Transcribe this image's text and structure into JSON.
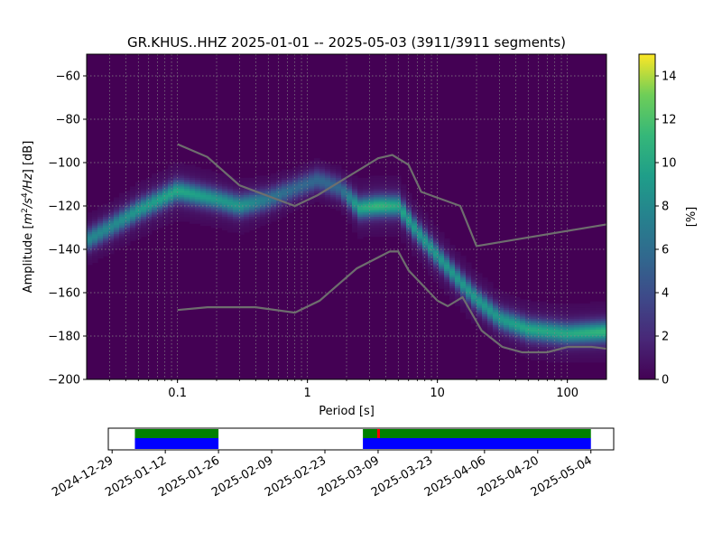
{
  "chart_data": [
    {
      "type": "heatmap",
      "title": "GR.KHUS..HHZ   2025-01-01 -- 2025-05-03  (3911/3911 segments)",
      "xlabel": "Period [s]",
      "ylabel_parts": [
        "Amplitude [",
        "m",
        "2",
        "/s",
        "4",
        "/Hz",
        "] [dB]"
      ],
      "x_scale": "log",
      "xlim": [
        0.02,
        200
      ],
      "ylim": [
        -200,
        -50
      ],
      "x_ticks": [
        {
          "value": 0.1,
          "label": "0.1"
        },
        {
          "value": 1,
          "label": "1"
        },
        {
          "value": 10,
          "label": "10"
        },
        {
          "value": 100,
          "label": "100"
        }
      ],
      "y_ticks": [
        {
          "value": -60,
          "label": "−60"
        },
        {
          "value": -80,
          "label": "−80"
        },
        {
          "value": -100,
          "label": "−100"
        },
        {
          "value": -120,
          "label": "−120"
        },
        {
          "value": -140,
          "label": "−140"
        },
        {
          "value": -160,
          "label": "−160"
        },
        {
          "value": -180,
          "label": "−180"
        },
        {
          "value": -200,
          "label": "−200"
        }
      ],
      "grid": true,
      "colormap": "viridis",
      "colorbar": {
        "label": "[%]",
        "range": [
          0,
          15
        ],
        "ticks": [
          {
            "value": 0,
            "label": "0"
          },
          {
            "value": 2,
            "label": "2"
          },
          {
            "value": 4,
            "label": "4"
          },
          {
            "value": 6,
            "label": "6"
          },
          {
            "value": 8,
            "label": "8"
          },
          {
            "value": 10,
            "label": "10"
          },
          {
            "value": 12,
            "label": "12"
          },
          {
            "value": 14,
            "label": "14"
          }
        ]
      },
      "density_ridges": [
        {
          "period": 0.02,
          "center_db": -136,
          "peak_pct": 7
        },
        {
          "period": 0.03,
          "center_db": -130,
          "peak_pct": 7
        },
        {
          "period": 0.05,
          "center_db": -122,
          "peak_pct": 8
        },
        {
          "period": 0.1,
          "center_db": -113,
          "peak_pct": 9
        },
        {
          "period": 0.2,
          "center_db": -117,
          "peak_pct": 8
        },
        {
          "period": 0.3,
          "center_db": -120,
          "peak_pct": 8
        },
        {
          "period": 0.5,
          "center_db": -117,
          "peak_pct": 6
        },
        {
          "period": 0.8,
          "center_db": -112,
          "peak_pct": 5
        },
        {
          "period": 1.2,
          "center_db": -108,
          "peak_pct": 5
        },
        {
          "period": 1.8,
          "center_db": -112,
          "peak_pct": 5
        },
        {
          "period": 2.5,
          "center_db": -121,
          "peak_pct": 9
        },
        {
          "period": 3.5,
          "center_db": -120,
          "peak_pct": 10
        },
        {
          "period": 5,
          "center_db": -120,
          "peak_pct": 9
        },
        {
          "period": 7,
          "center_db": -132,
          "peak_pct": 8
        },
        {
          "period": 10,
          "center_db": -143,
          "peak_pct": 8
        },
        {
          "period": 15,
          "center_db": -155,
          "peak_pct": 8
        },
        {
          "period": 20,
          "center_db": -163,
          "peak_pct": 8
        },
        {
          "period": 30,
          "center_db": -172,
          "peak_pct": 8
        },
        {
          "period": 50,
          "center_db": -177,
          "peak_pct": 9
        },
        {
          "period": 100,
          "center_db": -179,
          "peak_pct": 9
        },
        {
          "period": 200,
          "center_db": -178,
          "peak_pct": 10
        }
      ],
      "reference_curves": [
        {
          "points": [
            [
              0.1,
              -91.5
            ],
            [
              0.17,
              -97.4
            ],
            [
              0.3,
              -110.5
            ],
            [
              0.8,
              -120.0
            ],
            [
              1.2,
              -115.0
            ],
            [
              3.5,
              -98.0
            ],
            [
              4.5,
              -96.5
            ],
            [
              6.0,
              -101.0
            ],
            [
              7.5,
              -113.5
            ],
            [
              15,
              -120.0
            ],
            [
              20,
              -138.5
            ],
            [
              200,
              -128.5
            ]
          ]
        },
        {
          "points": [
            [
              0.1,
              -168.0
            ],
            [
              0.17,
              -166.7
            ],
            [
              0.4,
              -166.7
            ],
            [
              0.8,
              -169.2
            ],
            [
              1.24,
              -163.7
            ],
            [
              2.4,
              -148.8
            ],
            [
              4.3,
              -141.0
            ],
            [
              5.0,
              -141.0
            ],
            [
              6.0,
              -149.7
            ],
            [
              10,
              -163.7
            ],
            [
              12,
              -166.2
            ],
            [
              15.6,
              -162.1
            ],
            [
              21.9,
              -177.5
            ],
            [
              31.6,
              -185.0
            ],
            [
              45,
              -187.5
            ],
            [
              70,
              -187.5
            ],
            [
              101,
              -185.0
            ],
            [
              154,
              -185.0
            ],
            [
              328,
              -187.5
            ]
          ]
        }
      ]
    },
    {
      "type": "timeline",
      "x_ticks": [
        "2024-12-29",
        "2025-01-12",
        "2025-01-26",
        "2025-02-09",
        "2025-02-23",
        "2025-03-09",
        "2025-03-23",
        "2025-04-06",
        "2025-04-20",
        "2025-05-04"
      ],
      "xlim": [
        "2024-12-28",
        "2025-05-10"
      ],
      "intervals": [
        {
          "start": "2025-01-04",
          "end": "2025-01-26"
        },
        {
          "start": "2025-03-05",
          "end": "2025-05-04"
        }
      ],
      "marker_date": "2025-03-09",
      "colors": {
        "data": "#0000ff",
        "psd": "#008000",
        "marker": "#ff0000"
      }
    }
  ]
}
